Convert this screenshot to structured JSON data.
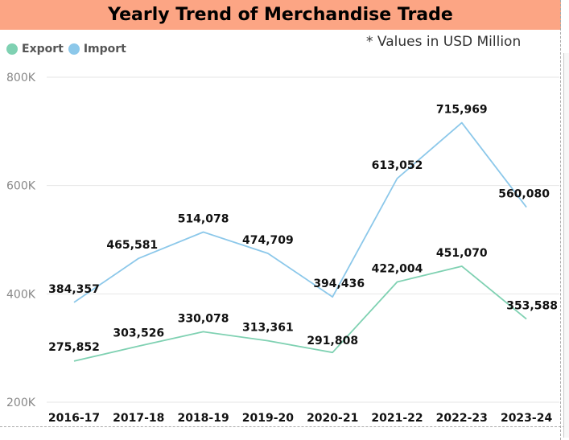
{
  "header": {
    "title": "Yearly Trend of Merchandise Trade"
  },
  "note": "* Values in USD Million",
  "colors": {
    "title_bg": "#fca584",
    "export": "#7fd1b2",
    "import": "#8cc8ea"
  },
  "chart_data": {
    "type": "line",
    "title": "Yearly Trend of Merchandise Trade",
    "xlabel": "",
    "ylabel": "",
    "categories": [
      "2016-17",
      "2017-18",
      "2018-19",
      "2019-20",
      "2020-21",
      "2021-22",
      "2022-23",
      "2023-24"
    ],
    "yticks": [
      200000,
      400000,
      600000,
      800000
    ],
    "ytick_labels": [
      "200K",
      "400K",
      "600K",
      "800K"
    ],
    "ylim": [
      200000,
      800000
    ],
    "grid": true,
    "legend_position": "top-left",
    "series": [
      {
        "name": "Export",
        "color": "#7fd1b2",
        "values": [
          275852,
          303526,
          330078,
          313361,
          291808,
          422004,
          451070,
          353588
        ],
        "labels": [
          "275,852",
          "303,526",
          "330,078",
          "313,361",
          "291,808",
          "422,004",
          "451,070",
          "353,588"
        ]
      },
      {
        "name": "Import",
        "color": "#8cc8ea",
        "values": [
          384357,
          465581,
          514078,
          474709,
          394436,
          613052,
          715969,
          560080
        ],
        "labels": [
          "384,357",
          "465,581",
          "514,078",
          "474,709",
          "394,436",
          "613,052",
          "715,969",
          "560,080"
        ]
      }
    ]
  }
}
